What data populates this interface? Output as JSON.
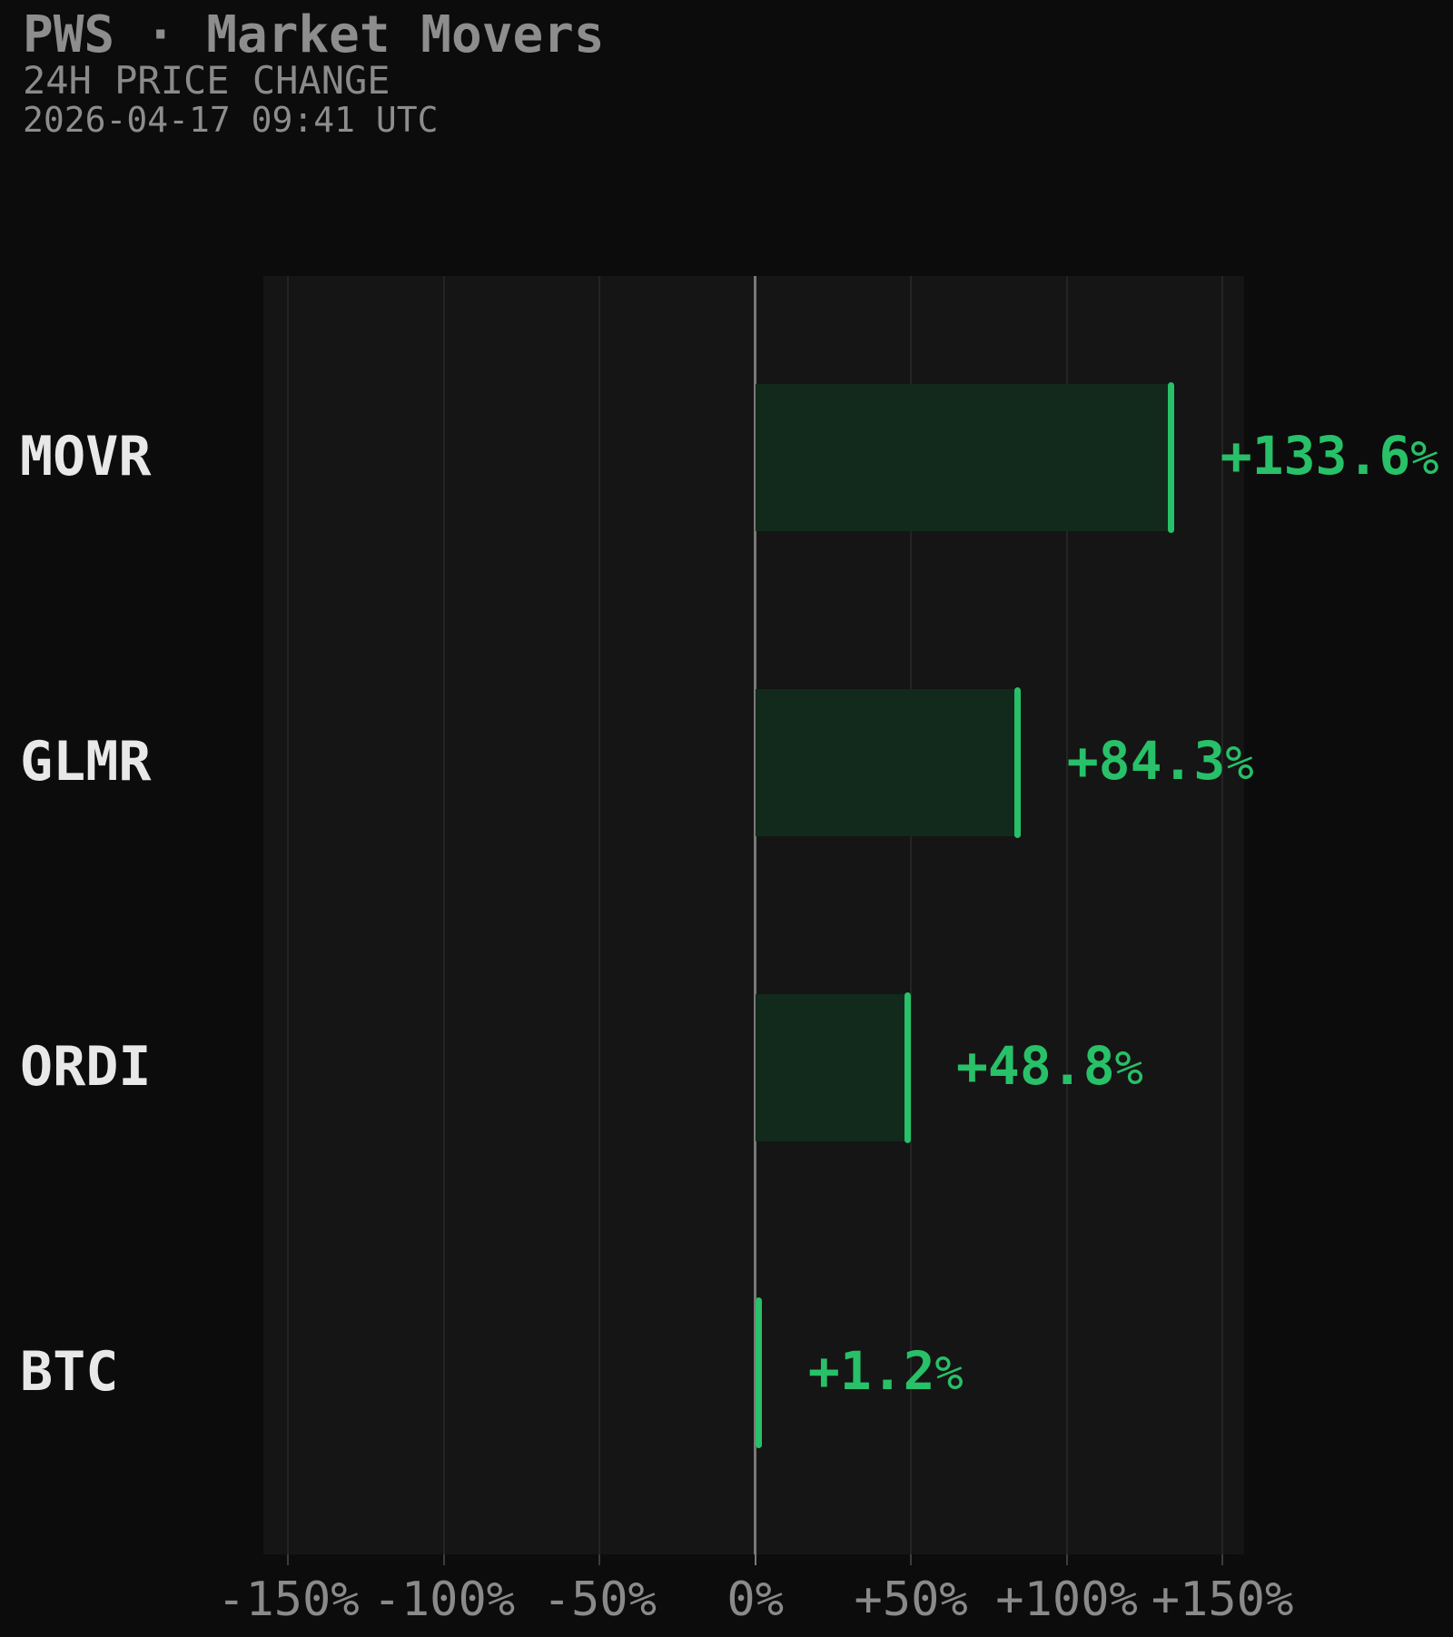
{
  "header": {
    "title": "PWS · Market Movers",
    "subtitle": "24H PRICE CHANGE",
    "timestamp": "2026-04-17 09:41 UTC"
  },
  "chart_data": {
    "type": "bar",
    "orientation": "horizontal",
    "title": "PWS · Market Movers",
    "subtitle": "24H PRICE CHANGE",
    "timestamp": "2026-04-17 09:41 UTC",
    "categories": [
      "MOVR",
      "GLMR",
      "ORDI",
      "BTC"
    ],
    "values": [
      133.6,
      84.3,
      48.8,
      1.2
    ],
    "value_labels": [
      "+133.6%",
      "+84.3%",
      "+48.8%",
      "+1.2%"
    ],
    "xlabel": "",
    "ylabel": "",
    "xlim": [
      -158,
      157
    ],
    "xticks": [
      -150,
      -100,
      -50,
      0,
      50,
      100,
      150
    ],
    "xtick_labels": [
      "-150%",
      "-100%",
      "-50%",
      "0%",
      "+50%",
      "+100%",
      "+150%"
    ],
    "grid": "vertical",
    "legend": "none",
    "colors": {
      "background": "#0c0c0c",
      "panel": "#151515",
      "gridline": "#242424",
      "zero_line": "#787878",
      "tick_mark": "#3c3c3c",
      "bar_fill": "#122a1c",
      "bar_cap": "#28c068",
      "value_label": "#28c068",
      "category_label": "#e8e8e8",
      "tick_label": "#8a8a8a",
      "header_text": "#8d8d8d"
    }
  }
}
